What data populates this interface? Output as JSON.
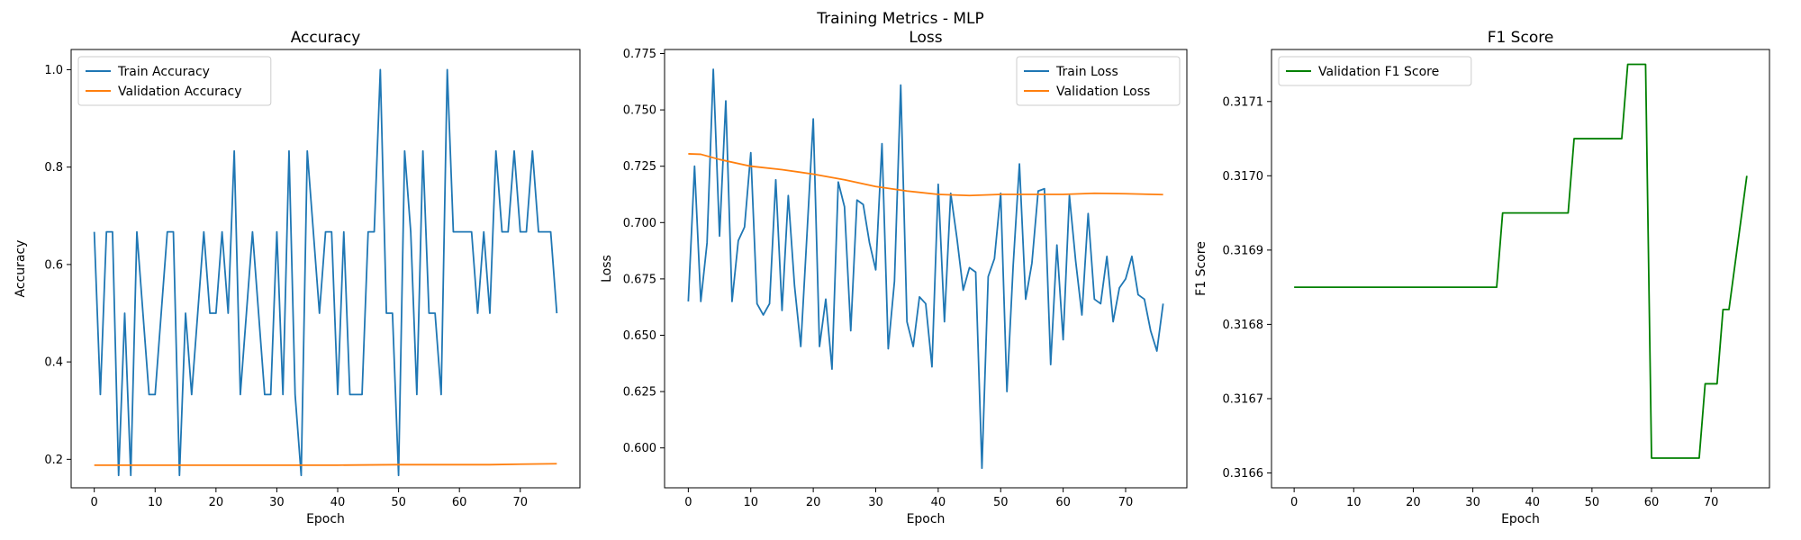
{
  "suptitle": "Training Metrics - MLP",
  "colors": {
    "train": "#1f77b4",
    "validation": "#ff7f0e",
    "f1": "#008000"
  },
  "chart_data": [
    {
      "type": "line",
      "title": "Accuracy",
      "xlabel": "Epoch",
      "ylabel": "Accuracy",
      "xlim": [
        -3.8,
        79.8
      ],
      "ylim": [
        0.1415,
        1.0415
      ],
      "xticks": [
        0,
        10,
        20,
        30,
        40,
        50,
        60,
        70
      ],
      "yticks": [
        0.2,
        0.4,
        0.6,
        0.8,
        1.0
      ],
      "ytick_labels": [
        "0.2",
        "0.4",
        "0.6",
        "0.8",
        "1.0"
      ],
      "legend_position": "upper left",
      "series": [
        {
          "name": "Train Accuracy",
          "color": "#1f77b4",
          "x": [
            0,
            1,
            2,
            3,
            4,
            5,
            6,
            7,
            8,
            9,
            10,
            11,
            12,
            13,
            14,
            15,
            16,
            17,
            18,
            19,
            20,
            21,
            22,
            23,
            24,
            25,
            26,
            27,
            28,
            29,
            30,
            31,
            32,
            33,
            34,
            35,
            36,
            37,
            38,
            39,
            40,
            41,
            42,
            43,
            44,
            45,
            46,
            47,
            48,
            49,
            50,
            51,
            52,
            53,
            54,
            55,
            56,
            57,
            58,
            59,
            60,
            61,
            62,
            63,
            64,
            65,
            66,
            67,
            68,
            69,
            70,
            71,
            72,
            73,
            74,
            75,
            76
          ],
          "values": [
            0.667,
            0.333,
            0.667,
            0.667,
            0.167,
            0.5,
            0.167,
            0.667,
            0.5,
            0.333,
            0.333,
            0.5,
            0.667,
            0.667,
            0.167,
            0.5,
            0.333,
            0.5,
            0.667,
            0.5,
            0.5,
            0.667,
            0.5,
            0.833,
            0.333,
            0.5,
            0.667,
            0.5,
            0.333,
            0.333,
            0.667,
            0.333,
            0.833,
            0.333,
            0.167,
            0.833,
            0.667,
            0.5,
            0.667,
            0.667,
            0.333,
            0.667,
            0.333,
            0.333,
            0.333,
            0.667,
            0.667,
            1.0,
            0.5,
            0.5,
            0.167,
            0.833,
            0.667,
            0.333,
            0.833,
            0.5,
            0.5,
            0.333,
            1.0,
            0.667,
            0.667,
            0.667,
            0.667,
            0.5,
            0.667,
            0.5,
            0.833,
            0.667,
            0.667,
            0.833,
            0.667,
            0.667,
            0.833,
            0.667,
            0.667,
            0.667,
            0.5
          ]
        },
        {
          "name": "Validation Accuracy",
          "color": "#ff7f0e",
          "x": [
            0,
            10,
            20,
            30,
            40,
            50,
            55,
            60,
            65,
            70,
            76
          ],
          "values": [
            0.188,
            0.188,
            0.188,
            0.188,
            0.188,
            0.189,
            0.189,
            0.189,
            0.189,
            0.19,
            0.191
          ]
        }
      ]
    },
    {
      "type": "line",
      "title": "Loss",
      "xlabel": "Epoch",
      "ylabel": "Loss",
      "xlim": [
        -3.8,
        79.8
      ],
      "ylim": [
        0.5823,
        0.7768
      ],
      "xticks": [
        0,
        10,
        20,
        30,
        40,
        50,
        60,
        70
      ],
      "yticks": [
        0.6,
        0.625,
        0.65,
        0.675,
        0.7,
        0.725,
        0.75,
        0.775
      ],
      "ytick_labels": [
        "0.600",
        "0.625",
        "0.650",
        "0.675",
        "0.700",
        "0.725",
        "0.750",
        "0.775"
      ],
      "legend_position": "upper right",
      "series": [
        {
          "name": "Train Loss",
          "color": "#1f77b4",
          "x": [
            0,
            1,
            2,
            3,
            4,
            5,
            6,
            7,
            8,
            9,
            10,
            11,
            12,
            13,
            14,
            15,
            16,
            17,
            18,
            19,
            20,
            21,
            22,
            23,
            24,
            25,
            26,
            27,
            28,
            29,
            30,
            31,
            32,
            33,
            34,
            35,
            36,
            37,
            38,
            39,
            40,
            41,
            42,
            43,
            44,
            45,
            46,
            47,
            48,
            49,
            50,
            51,
            52,
            53,
            54,
            55,
            56,
            57,
            58,
            59,
            60,
            61,
            62,
            63,
            64,
            65,
            66,
            67,
            68,
            69,
            70,
            71,
            72,
            73,
            74,
            75,
            76
          ],
          "values": [
            0.665,
            0.725,
            0.665,
            0.691,
            0.768,
            0.694,
            0.754,
            0.665,
            0.692,
            0.698,
            0.731,
            0.664,
            0.659,
            0.664,
            0.719,
            0.661,
            0.712,
            0.672,
            0.645,
            0.695,
            0.746,
            0.645,
            0.666,
            0.635,
            0.718,
            0.707,
            0.652,
            0.71,
            0.708,
            0.691,
            0.679,
            0.735,
            0.644,
            0.674,
            0.761,
            0.656,
            0.645,
            0.667,
            0.664,
            0.636,
            0.717,
            0.656,
            0.713,
            0.693,
            0.67,
            0.68,
            0.678,
            0.591,
            0.676,
            0.684,
            0.713,
            0.625,
            0.681,
            0.726,
            0.666,
            0.682,
            0.714,
            0.715,
            0.637,
            0.69,
            0.648,
            0.712,
            0.683,
            0.659,
            0.704,
            0.666,
            0.664,
            0.685,
            0.656,
            0.671,
            0.675,
            0.685,
            0.668,
            0.666,
            0.652,
            0.643,
            0.664
          ]
        },
        {
          "name": "Validation Loss",
          "color": "#ff7f0e",
          "x": [
            0,
            2,
            5,
            10,
            15,
            20,
            25,
            30,
            35,
            40,
            45,
            50,
            55,
            60,
            65,
            70,
            76
          ],
          "values": [
            0.7305,
            0.7303,
            0.728,
            0.725,
            0.7235,
            0.7215,
            0.719,
            0.716,
            0.714,
            0.7125,
            0.712,
            0.7125,
            0.7125,
            0.7125,
            0.713,
            0.7128,
            0.7124
          ]
        }
      ]
    },
    {
      "type": "line",
      "title": "F1 Score",
      "xlabel": "Epoch",
      "ylabel": "F1 Score",
      "xlim": [
        -3.8,
        79.8
      ],
      "ylim": [
        0.31658,
        0.31717
      ],
      "xticks": [
        0,
        10,
        20,
        30,
        40,
        50,
        60,
        70
      ],
      "yticks": [
        0.3166,
        0.3167,
        0.3168,
        0.3169,
        0.317,
        0.3171
      ],
      "ytick_labels": [
        "0.3166",
        "0.3167",
        "0.3168",
        "0.3169",
        "0.3170",
        "0.3171"
      ],
      "legend_position": "upper left",
      "series": [
        {
          "name": "Validation F1 Score",
          "color": "#008000",
          "x": [
            0,
            34,
            35,
            46,
            47,
            55,
            56,
            59,
            60,
            68,
            69,
            71,
            72,
            73,
            76
          ],
          "values": [
            0.31685,
            0.31685,
            0.31695,
            0.31695,
            0.31705,
            0.31705,
            0.31715,
            0.31715,
            0.31662,
            0.31662,
            0.31672,
            0.31672,
            0.31682,
            0.31682,
            0.317
          ]
        }
      ]
    }
  ]
}
